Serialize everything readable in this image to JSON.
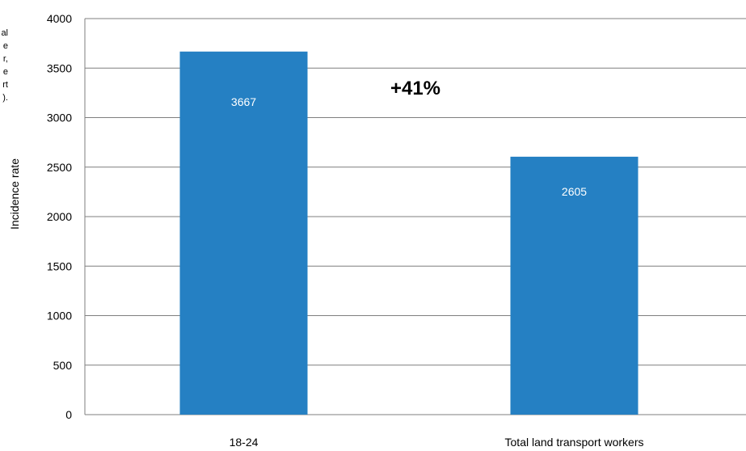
{
  "chart_data": {
    "type": "bar",
    "title": "",
    "xlabel": "",
    "ylabel": "Incidence rate",
    "categories": [
      "18-24",
      "Total land transport workers"
    ],
    "values": [
      3667,
      2605
    ],
    "ylim": [
      0,
      4000
    ],
    "yticks": [
      0,
      500,
      1000,
      1500,
      2000,
      2500,
      3000,
      3500,
      4000
    ],
    "grid": true,
    "legend": "none",
    "annotation": "+41%",
    "bar_color": "#2580c3",
    "side_note": [
      "al",
      "e",
      "r,",
      "e",
      "rt",
      ")."
    ]
  }
}
